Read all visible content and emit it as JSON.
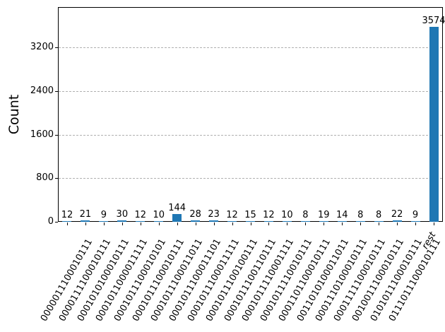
{
  "chart_data": {
    "type": "bar",
    "ylabel": "Count",
    "categories": [
      "0000011100010111",
      "0000111100010111",
      "0001010100010111",
      "0001011000011111",
      "0001011100010101",
      "0001011100010111",
      "0001011100011011",
      "0001011100011101",
      "0001011100011111",
      "0001011100100111",
      "0001011100110111",
      "0001011110001111",
      "0001011110010111",
      "0001101100010111",
      "0011010100011011",
      "0001110100010111",
      "0001111100010111",
      "0010011100010111",
      "0101011100010111",
      "0111011100010111",
      "rest"
    ],
    "values": [
      12,
      21,
      9,
      30,
      12,
      10,
      144,
      28,
      23,
      12,
      15,
      12,
      10,
      8,
      19,
      14,
      8,
      8,
      22,
      9,
      3574
    ],
    "value_labels": [
      "12",
      "21",
      "9",
      "30",
      "12",
      "10",
      "144",
      "28",
      "23",
      "12",
      "15",
      "12",
      "10",
      "8",
      "19",
      "14",
      "8",
      "8",
      "22",
      "9",
      "3574"
    ],
    "yticks": [
      0,
      800,
      1600,
      2400,
      3200
    ],
    "ytick_labels": [
      "0",
      "800",
      "1600",
      "2400",
      "3200"
    ],
    "ylim": [
      0,
      3940
    ],
    "bar_color": "#1f77b4",
    "grid": "horizontal-dashed",
    "grid_color": "#b0b0b0",
    "xtick_rotation": 60,
    "legend": "none",
    "title": ""
  }
}
